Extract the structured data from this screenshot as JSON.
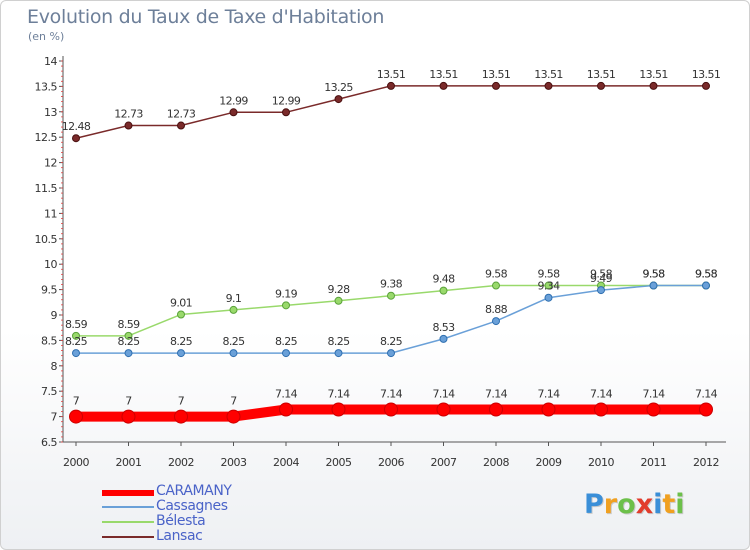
{
  "header": {
    "title": "Evolution du Taux de Taxe d'Habitation",
    "subtitle": "(en %)"
  },
  "chart_data": {
    "type": "line",
    "title": "Evolution du Taux de Taxe d'Habitation",
    "ylabel": "(en %)",
    "xlabel": "",
    "x": [
      "2000",
      "2001",
      "2002",
      "2003",
      "2004",
      "2005",
      "2006",
      "2007",
      "2008",
      "2009",
      "2010",
      "2011",
      "2012"
    ],
    "ylim": [
      6.5,
      14
    ],
    "yticks": [
      "6.5",
      "7",
      "7.5",
      "8",
      "8.5",
      "9",
      "9.5",
      "10",
      "10.5",
      "11",
      "11.5",
      "12",
      "12.5",
      "13",
      "13.5",
      "14"
    ],
    "grid": false,
    "legend_position": "bottom-left",
    "series": [
      {
        "name": "CARAMANY",
        "color": "#ff0000",
        "values": [
          7,
          7,
          7,
          7,
          7.14,
          7.14,
          7.14,
          7.14,
          7.14,
          7.14,
          7.14,
          7.14,
          7.14
        ],
        "labels": [
          "7",
          "7",
          "7",
          "7",
          "7.14",
          "7.14",
          "7.14",
          "7.14",
          "7.14",
          "7.14",
          "7.14",
          "7.14",
          "7.14"
        ]
      },
      {
        "name": "Cassagnes",
        "color": "#6aa0d8",
        "values": [
          8.25,
          8.25,
          8.25,
          8.25,
          8.25,
          8.25,
          8.25,
          8.53,
          8.88,
          9.34,
          9.49,
          9.58,
          9.58
        ],
        "labels": [
          "8.25",
          "8.25",
          "8.25",
          "8.25",
          "8.25",
          "8.25",
          "8.25",
          "8.53",
          "8.88",
          "9.34",
          "9.49",
          "9.58",
          "9.58"
        ]
      },
      {
        "name": "Bélesta",
        "color": "#99d96b",
        "values": [
          8.59,
          8.59,
          9.01,
          9.1,
          9.19,
          9.28,
          9.38,
          9.48,
          9.58,
          9.58,
          9.58,
          9.58,
          9.58
        ],
        "labels": [
          "8.59",
          "8.59",
          "9.01",
          "9.1",
          "9.19",
          "9.28",
          "9.38",
          "9.48",
          "9.58",
          "9.58",
          "9.58",
          "9.58",
          "9.58"
        ]
      },
      {
        "name": "Lansac",
        "color": "#7a2a2a",
        "values": [
          12.48,
          12.73,
          12.73,
          12.99,
          12.99,
          13.25,
          13.51,
          13.51,
          13.51,
          13.51,
          13.51,
          13.51,
          13.51
        ],
        "labels": [
          "12.48",
          "12.73",
          "12.73",
          "12.99",
          "12.99",
          "13.25",
          "13.51",
          "13.51",
          "13.51",
          "13.51",
          "13.51",
          "13.51",
          "13.51"
        ]
      }
    ]
  },
  "logo": {
    "letters": [
      {
        "ch": "P",
        "color": "#3a8fd8"
      },
      {
        "ch": "r",
        "color": "#f0a020"
      },
      {
        "ch": "o",
        "color": "#6cc04a"
      },
      {
        "ch": "x",
        "color": "#e23c2c"
      },
      {
        "ch": "i",
        "color": "#3a8fd8"
      },
      {
        "ch": "t",
        "color": "#f0a020"
      },
      {
        "ch": "i",
        "color": "#6cc04a"
      }
    ]
  }
}
